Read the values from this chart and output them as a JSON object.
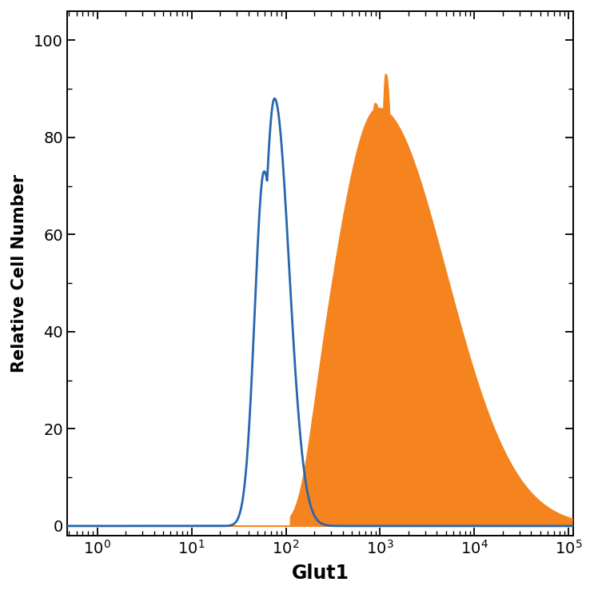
{
  "title": "",
  "xlabel": "Glut1",
  "ylabel": "Relative Cell Number",
  "xlim_min": -0.32,
  "xlim_max": 5.05,
  "ylim_min": -2,
  "ylim_max": 106,
  "blue_color": "#2766AE",
  "orange_color": "#F5841F",
  "xlabel_fontsize": 17,
  "ylabel_fontsize": 15,
  "tick_fontsize": 14,
  "tick_label_fontweight": "normal",
  "axis_label_fontweight": "bold"
}
